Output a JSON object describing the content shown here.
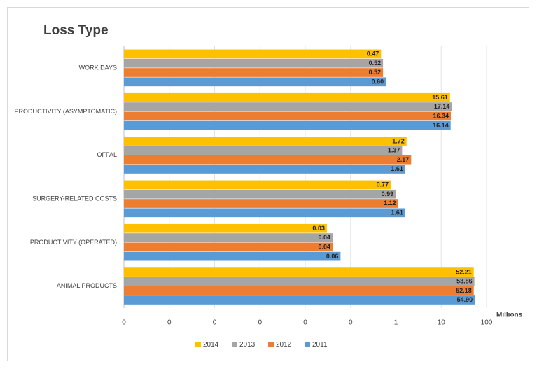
{
  "chart_data": {
    "type": "bar",
    "orientation": "horizontal",
    "title": "Loss Type",
    "x_label": "Millions",
    "categories": [
      "WORK DAYS",
      "PRODUCTIVITY (ASYMPTOMATIC)",
      "OFFAL",
      "SURGERY-RELATED COSTS",
      "PRODUCTIVITY (OPERATED)",
      "ANIMAL PRODUCTS"
    ],
    "series": [
      {
        "name": "2014",
        "color": "#ffc000",
        "values": [
          0.47,
          15.61,
          1.72,
          0.77,
          0.03,
          52.21
        ],
        "value_labels": [
          "0.47",
          "15.61",
          "1.72",
          "0.77",
          "0.03",
          "52.21"
        ]
      },
      {
        "name": "2013",
        "color": "#a5a5a5",
        "values": [
          0.52,
          17.14,
          1.37,
          0.99,
          0.04,
          53.86
        ],
        "value_labels": [
          "0.52",
          "17.14",
          "1.37",
          "0.99",
          "0.04",
          "53.86"
        ]
      },
      {
        "name": "2012",
        "color": "#ed7d31",
        "values": [
          0.52,
          16.34,
          2.17,
          1.12,
          0.04,
          52.18
        ],
        "value_labels": [
          "0.52",
          "16.34",
          "2.17",
          "1.12",
          "0.04",
          "52.18"
        ]
      },
      {
        "name": "2011",
        "color": "#5b9bd5",
        "values": [
          0.6,
          16.14,
          1.61,
          1.61,
          0.06,
          54.9
        ],
        "value_labels": [
          "0.60",
          "16.14",
          "1.61",
          "1.61",
          "0.06",
          "54.90"
        ]
      }
    ],
    "log_scale": true,
    "xlim": [
      1e-06,
      100
    ],
    "xticks": [
      {
        "value": 1e-06,
        "label": "0"
      },
      {
        "value": 1e-05,
        "label": "0"
      },
      {
        "value": 0.0001,
        "label": "0"
      },
      {
        "value": 0.001,
        "label": "0"
      },
      {
        "value": 0.01,
        "label": "0"
      },
      {
        "value": 0.1,
        "label": "0"
      },
      1,
      10,
      100
    ],
    "grid": true,
    "legend": "bottom"
  }
}
